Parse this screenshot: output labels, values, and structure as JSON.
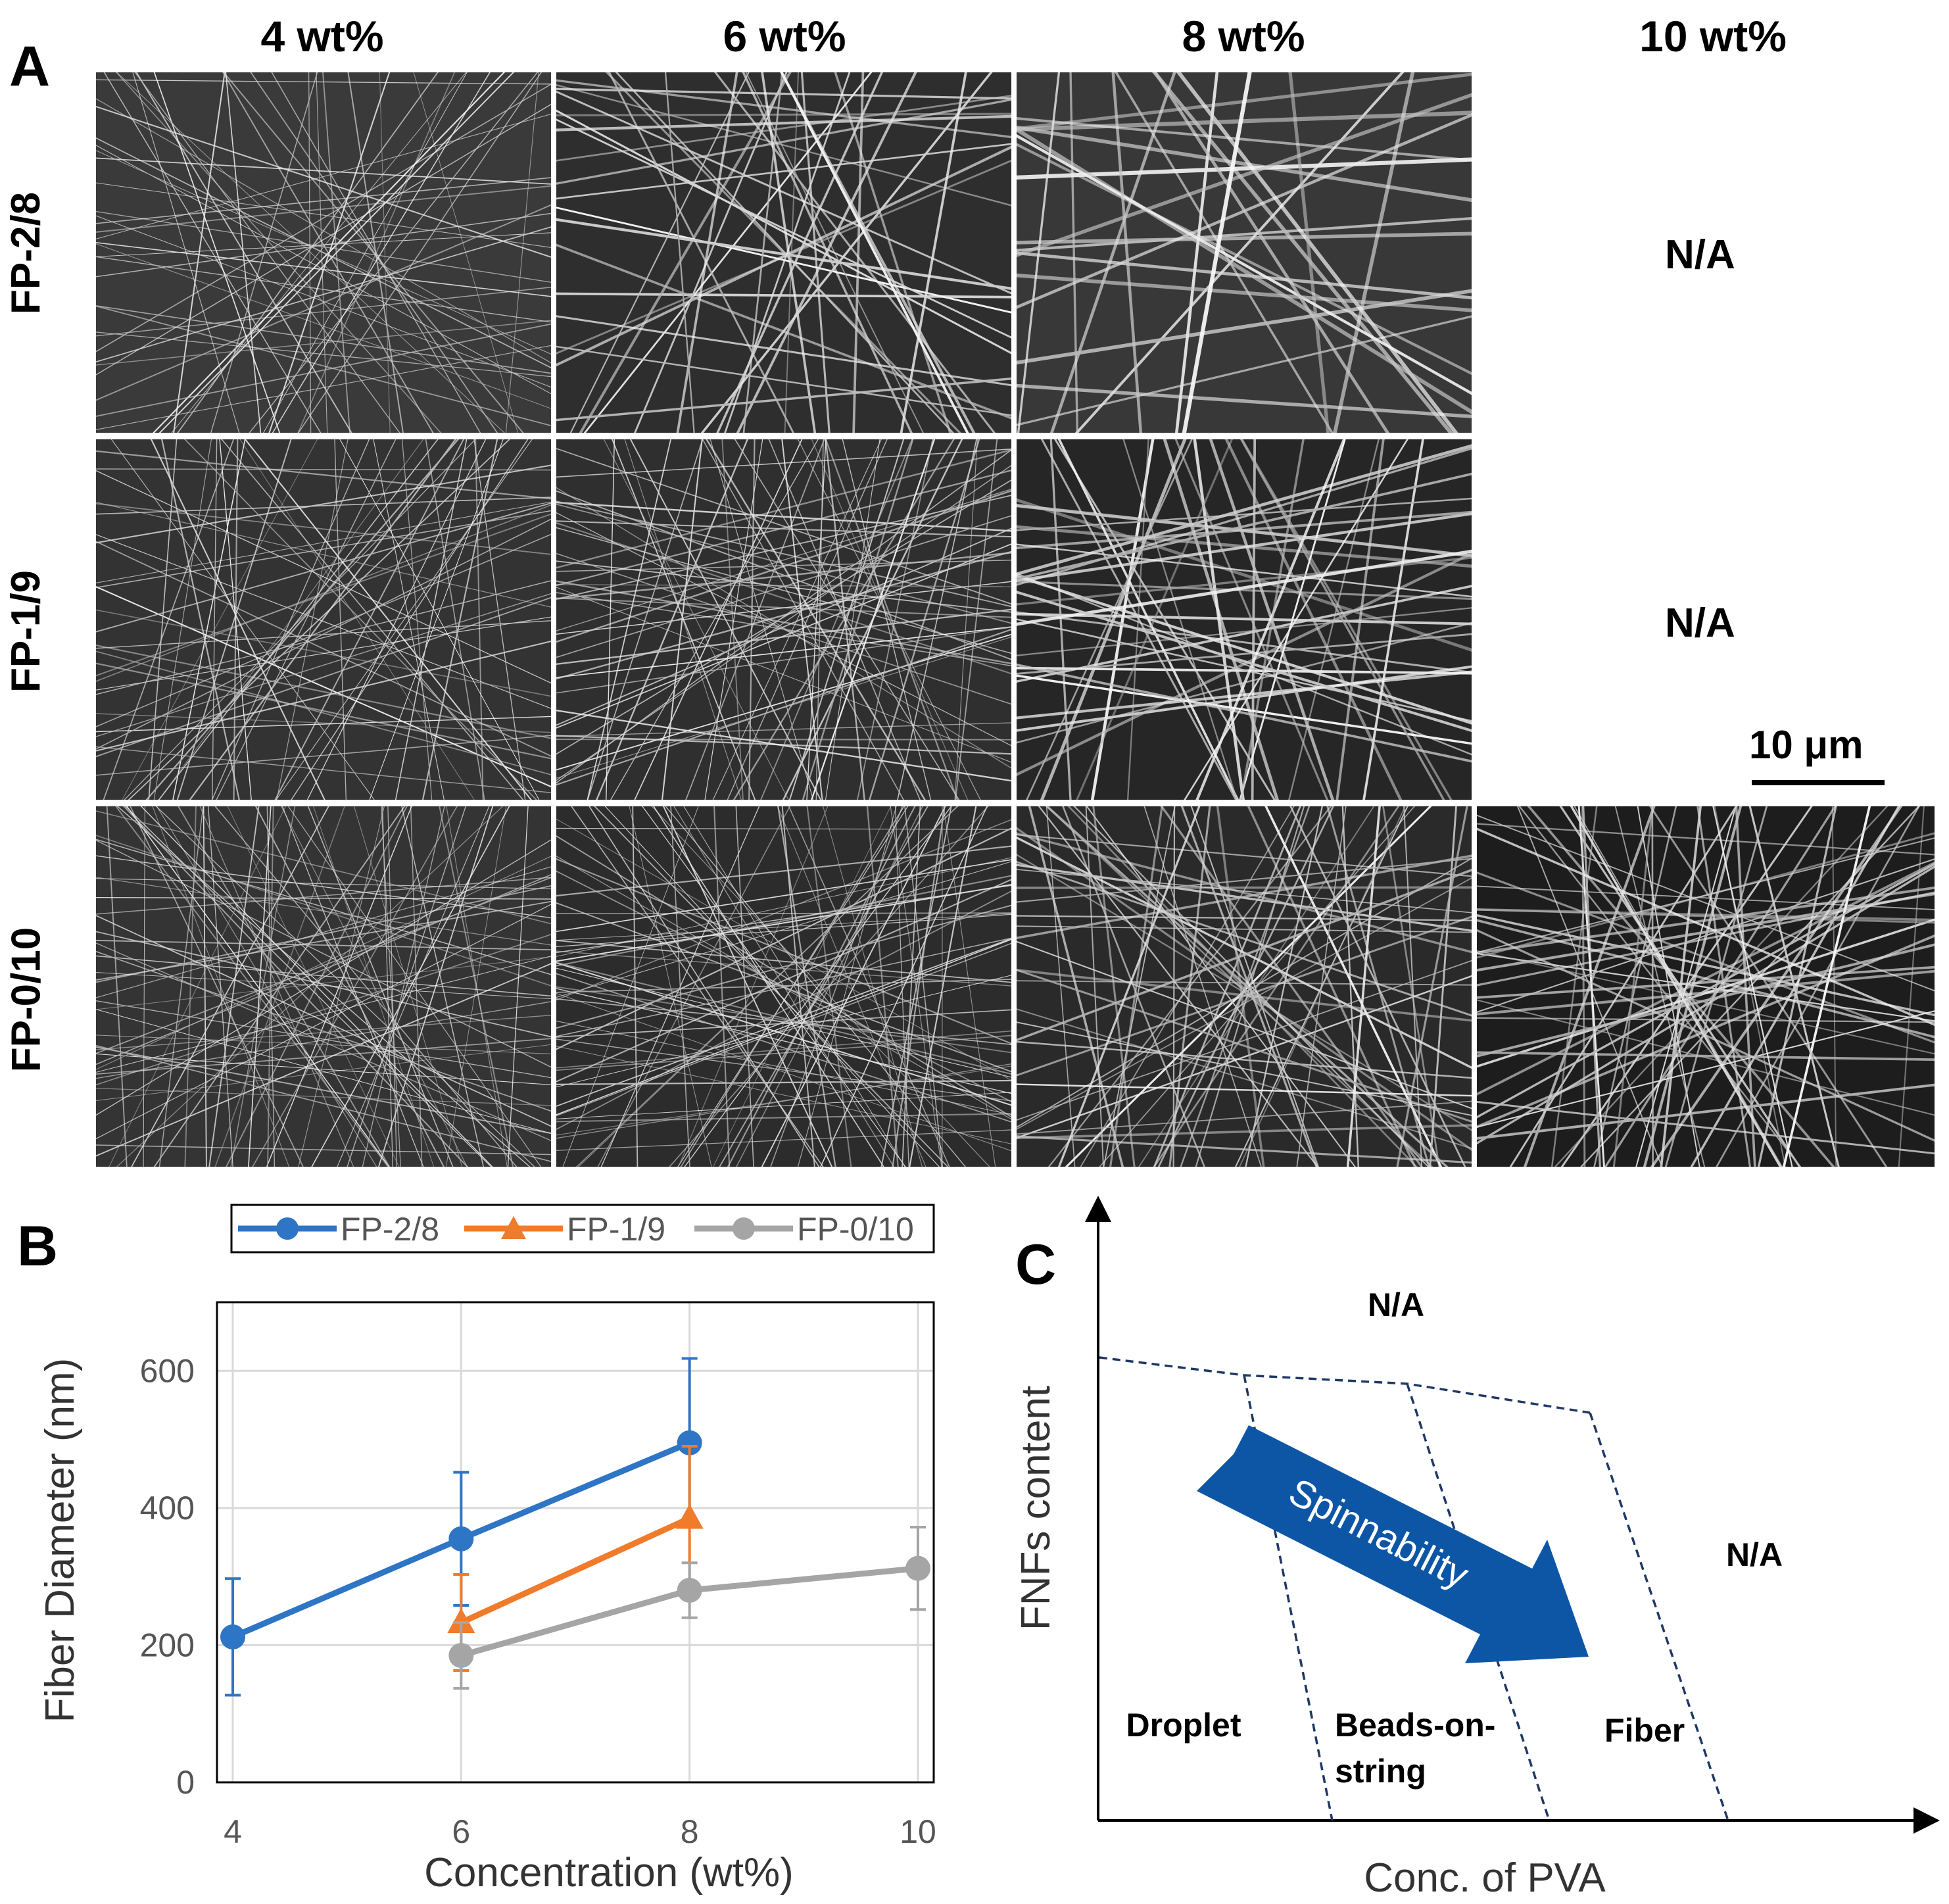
{
  "panel_a": {
    "letter": "A",
    "columns": [
      "4 wt%",
      "6 wt%",
      "8 wt%",
      "10 wt%"
    ],
    "rows": [
      "FP-2/8",
      "FP-1/9",
      "FP-0/10"
    ],
    "na_label": "N/A",
    "scale_bar": "10 μm"
  },
  "panel_b": {
    "letter": "B"
  },
  "panel_c": {
    "letter": "C"
  },
  "chart_data": [
    {
      "type": "line",
      "title": "",
      "xlabel": "Concentration (wt%)",
      "ylabel": "Fiber Diameter (nm)",
      "xlim": [
        4,
        10
      ],
      "ylim": [
        0,
        700
      ],
      "xticks": [
        "4",
        "6",
        "8",
        "10"
      ],
      "yticks": [
        "0",
        "200",
        "400",
        "600"
      ],
      "grid": true,
      "legend_position": "top",
      "series": [
        {
          "name": "FP-2/8",
          "marker": "circle",
          "color": "#2e75c6",
          "x": [
            4,
            6,
            8
          ],
          "y": [
            212,
            355,
            495
          ],
          "err": [
            85,
            97,
            123
          ]
        },
        {
          "name": "FP-1/9",
          "marker": "triangle",
          "color": "#f07b2b",
          "x": [
            6,
            8
          ],
          "y": [
            233,
            385
          ],
          "err": [
            70,
            105
          ]
        },
        {
          "name": "FP-0/10",
          "marker": "circle",
          "color": "#a5a5a5",
          "x": [
            6,
            8,
            10
          ],
          "y": [
            185,
            280,
            312
          ],
          "err": [
            48,
            40,
            60
          ]
        }
      ]
    },
    {
      "type": "diagram",
      "xlabel": "Conc. of PVA",
      "ylabel": "FNFs content",
      "regions": [
        "Droplet",
        "Beads-on-string",
        "Fiber"
      ],
      "region_text": {
        "droplet": "Droplet",
        "beads_line1": "Beads-on-",
        "beads_line2": "string",
        "fiber": "Fiber"
      },
      "na_top": "N/A",
      "na_right": "N/A",
      "arrow_label": "Spinnability"
    }
  ]
}
